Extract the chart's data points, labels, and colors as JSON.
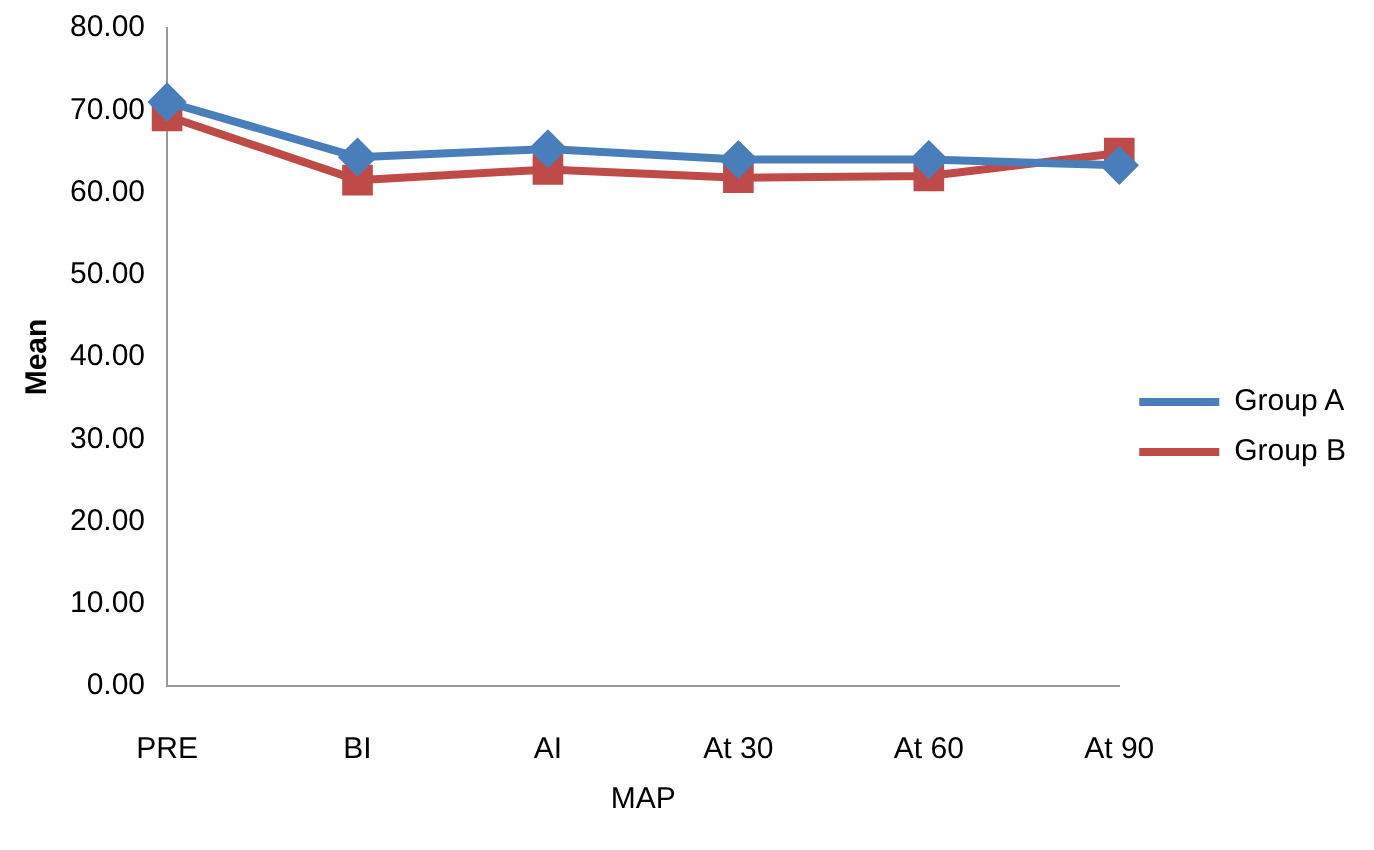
{
  "chart_data": {
    "type": "line",
    "xlabel": "MAP",
    "ylabel": "Mean",
    "categories": [
      "PRE",
      "BI",
      "AI",
      "At 30",
      "At 60",
      "At 90"
    ],
    "series": [
      {
        "name": "Group A",
        "color": "#4a7ebb",
        "marker": "diamond",
        "values": [
          71,
          64.3,
          65.3,
          64,
          64,
          63.3
        ]
      },
      {
        "name": "Group B",
        "color": "#be4b48",
        "marker": "square",
        "values": [
          69.3,
          61.5,
          62.8,
          61.8,
          62,
          64.8
        ]
      }
    ],
    "ylim": [
      0,
      80
    ],
    "yticks": [
      {
        "value": 0,
        "label": "0.00"
      },
      {
        "value": 10,
        "label": "10.00"
      },
      {
        "value": 20,
        "label": "20.00"
      },
      {
        "value": 30,
        "label": "30.00"
      },
      {
        "value": 40,
        "label": "40.00"
      },
      {
        "value": 50,
        "label": "50.00"
      },
      {
        "value": 60,
        "label": "60.00"
      },
      {
        "value": 70,
        "label": "70.00"
      },
      {
        "value": 80,
        "label": "80.00"
      }
    ],
    "grid": false,
    "legend": "right"
  }
}
